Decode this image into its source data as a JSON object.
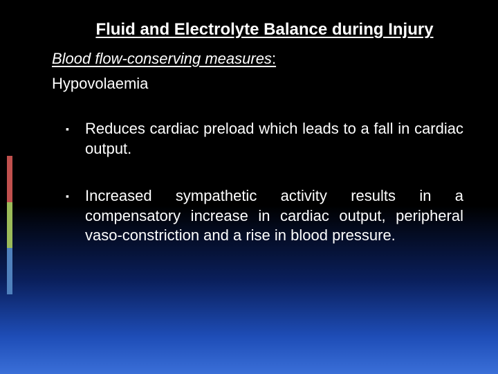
{
  "slide": {
    "title": "Fluid and Electrolyte Balance during Injury",
    "subtitle_label": "Blood  flow-conserving measures",
    "subtitle_suffix": ":",
    "term": "Hypovolaemia",
    "bullets": [
      "Reduces cardiac preload which leads to a fall in cardiac  output.",
      "Increased sympathetic activity  results in a compensatory increase in cardiac output, peripheral vaso-constriction and a rise in blood  pressure."
    ],
    "bullet_glyph": "▪"
  },
  "style": {
    "accent_colors": [
      "#c0504d",
      "#9bbb59",
      "#4f81bd"
    ],
    "text_color": "#ffffff",
    "title_fontsize": 24,
    "body_fontsize": 22,
    "font_family": "Arial"
  }
}
